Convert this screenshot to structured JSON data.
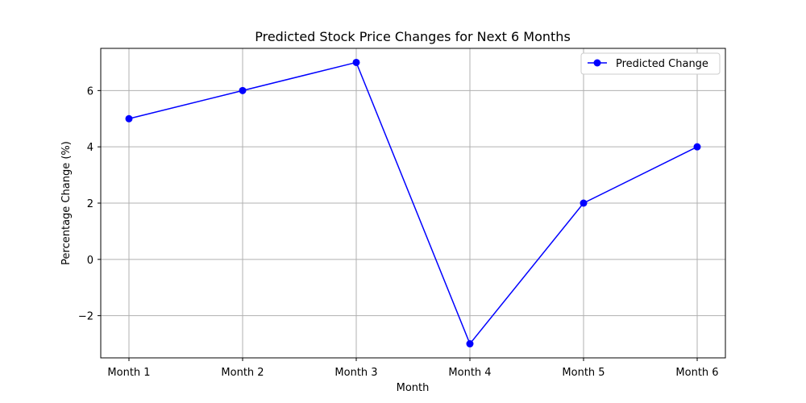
{
  "chart_data": {
    "type": "line",
    "title": "Predicted Stock Price Changes for Next 6 Months",
    "xlabel": "Month",
    "ylabel": "Percentage Change (%)",
    "categories": [
      "Month 1",
      "Month 2",
      "Month 3",
      "Month 4",
      "Month 5",
      "Month 6"
    ],
    "series": [
      {
        "name": "Predicted Change",
        "values": [
          5,
          6,
          7,
          -3,
          2,
          4
        ],
        "color": "#0000ff",
        "marker": "circle"
      }
    ],
    "ylim": [
      -3.5,
      7.5
    ],
    "yticks": [
      -2,
      0,
      2,
      4,
      6
    ],
    "ytick_labels": [
      "−2",
      "0",
      "2",
      "4",
      "6"
    ],
    "grid": true,
    "legend_position": "top-right"
  }
}
